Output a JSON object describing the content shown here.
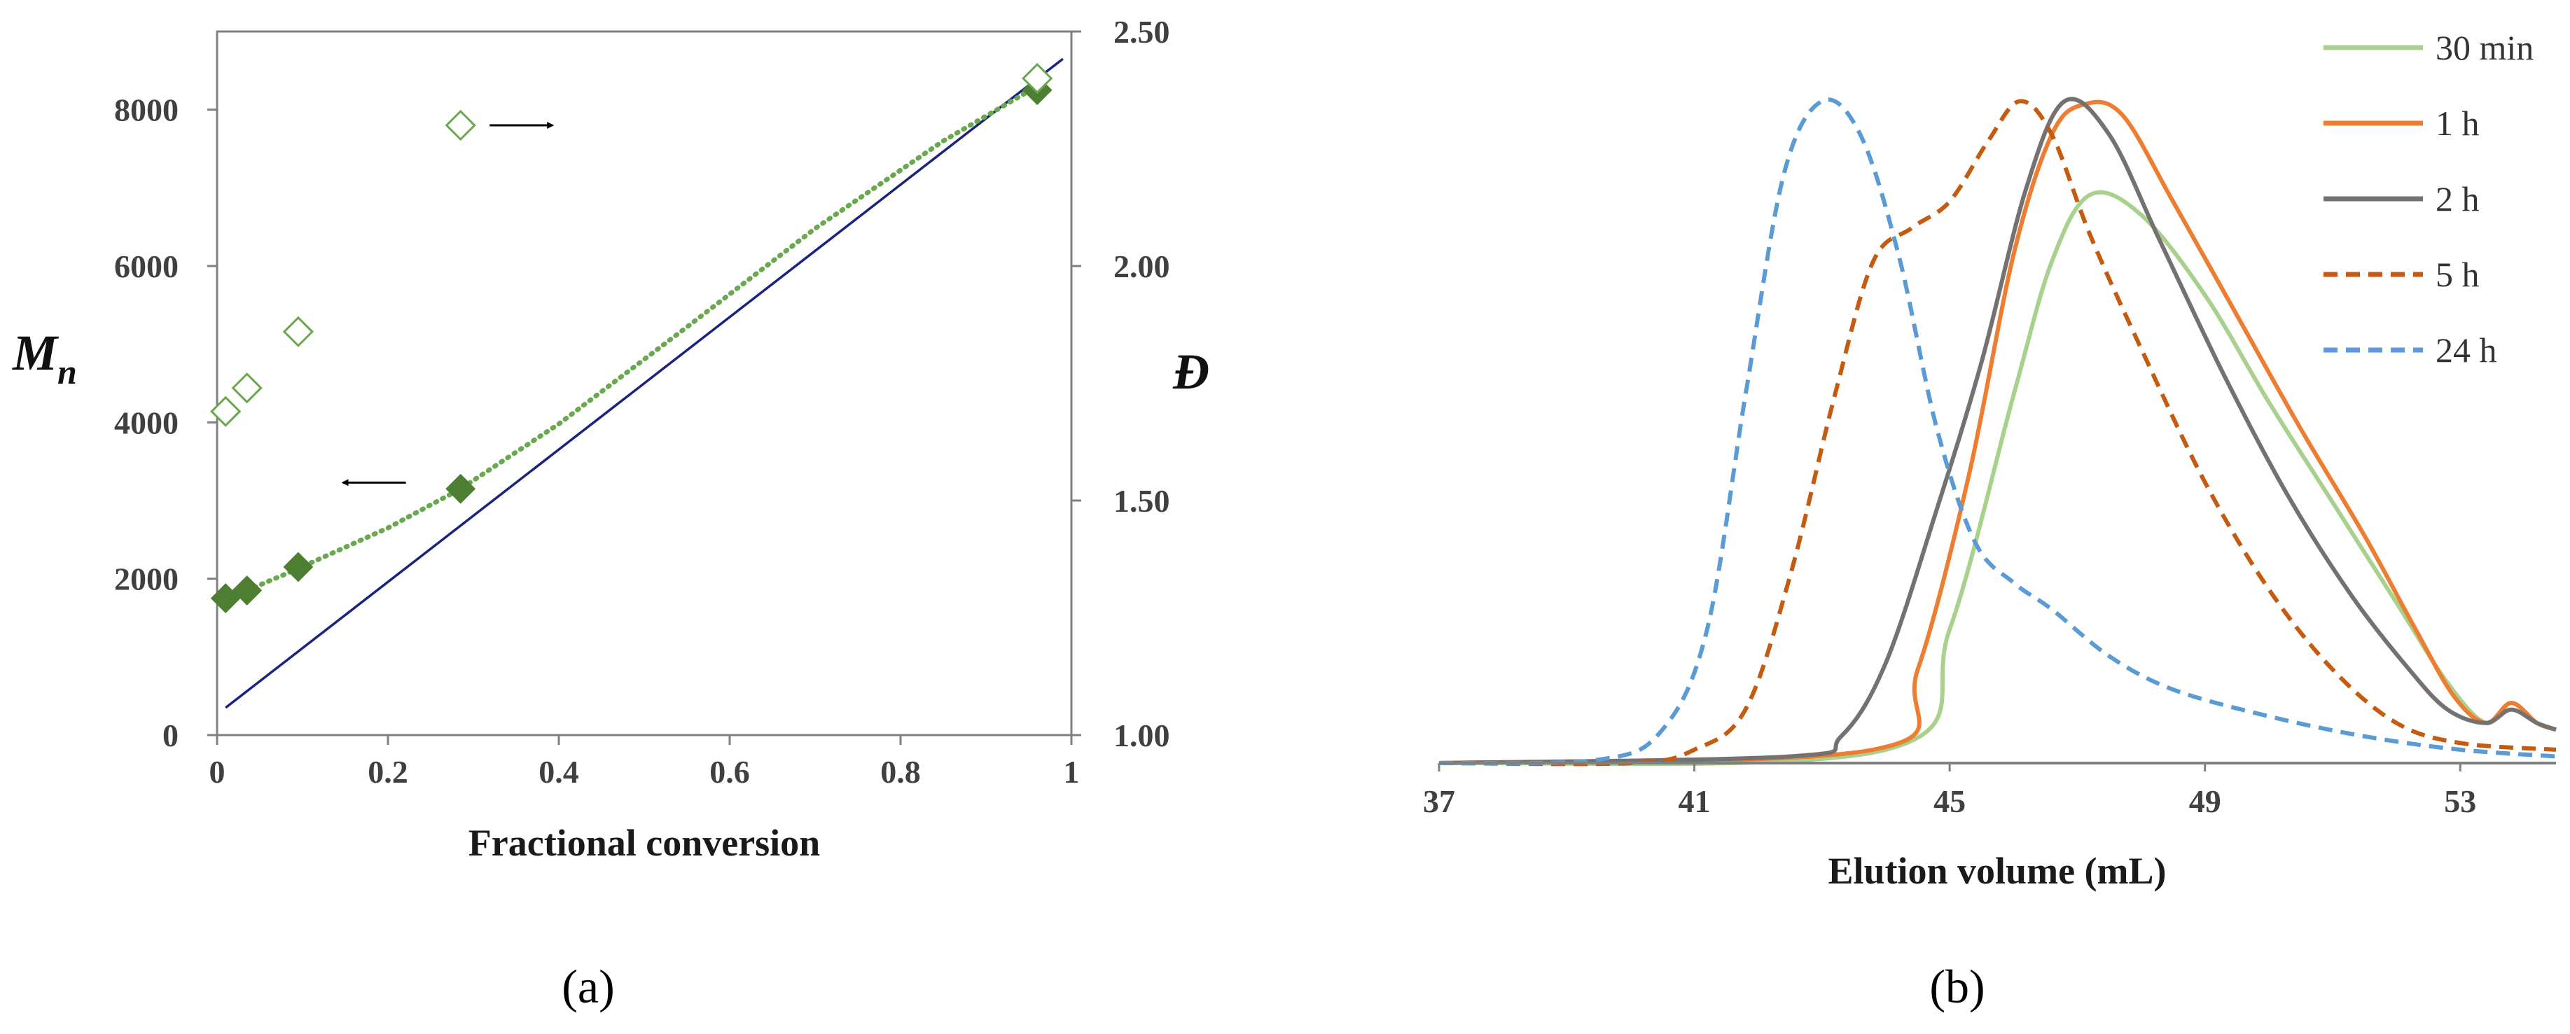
{
  "chart_data": [
    {
      "panel_label": "(a)",
      "type": "scatter",
      "xlabel": "Fractional conversion",
      "ylabel_left": "M",
      "ylabel_left_subscript": "n",
      "ylabel_right": "Đ",
      "xlim": [
        0,
        1
      ],
      "ylim_left": [
        0,
        9000
      ],
      "ylim_right": [
        1.0,
        2.5
      ],
      "x_ticks": [
        "0",
        "0.2",
        "0.4",
        "0.6",
        "0.8",
        "1"
      ],
      "y_left_ticks": [
        "0",
        "2000",
        "4000",
        "6000",
        "8000"
      ],
      "y_right_ticks": [
        "1.00",
        "1.50",
        "2.00",
        "2.50"
      ],
      "grid": false,
      "colors": {
        "filled": "#4e7e32",
        "hollow": "#6aa84f",
        "theory": "#1a237e",
        "trend": "#6aa84f",
        "arrow": "#000000"
      },
      "series": [
        {
          "axis": "left",
          "marker": "filled-diamond",
          "x": [
            0.01,
            0.035,
            0.095,
            0.285,
            0.96
          ],
          "y": [
            1750,
            1850,
            2150,
            3150,
            8250
          ]
        },
        {
          "axis": "right",
          "marker": "hollow-diamond",
          "x": [
            0.01,
            0.035,
            0.095,
            0.285,
            0.96
          ],
          "y": [
            1.69,
            1.74,
            1.86,
            2.3,
            2.4
          ]
        },
        {
          "axis": "left",
          "style": "solid-line",
          "x": [
            0.01,
            0.99
          ],
          "y": [
            350,
            8650
          ]
        },
        {
          "axis": "left",
          "style": "dotted-trendline",
          "x": [
            0.01,
            0.035,
            0.095,
            0.2,
            0.285,
            0.4,
            0.55,
            0.7,
            0.85,
            0.96
          ],
          "y": [
            1750,
            1850,
            2130,
            2650,
            3150,
            3980,
            5220,
            6480,
            7600,
            8300
          ]
        }
      ],
      "annotations": [
        {
          "type": "arrow-right",
          "x": 0.36,
          "y": 7800
        },
        {
          "type": "arrow-left",
          "x": 0.18,
          "y": 3230
        }
      ]
    },
    {
      "panel_label": "(b)",
      "type": "line",
      "xlabel": "Elution volume (mL)",
      "xlim": [
        37,
        54.5
      ],
      "x_ticks": [
        "37",
        "41",
        "45",
        "49",
        "53"
      ],
      "legend_position": "top-right",
      "series": [
        {
          "name": "30 min",
          "color": "#a9d18e",
          "dash": "solid",
          "x": [
            37,
            44,
            45,
            46,
            46.6,
            47.2,
            48,
            49,
            50,
            51,
            52,
            52.8,
            53.4,
            53.8,
            54.2,
            54.5
          ],
          "y": [
            0,
            0.02,
            0.2,
            0.55,
            0.75,
            0.85,
            0.82,
            0.7,
            0.54,
            0.39,
            0.24,
            0.12,
            0.06,
            0.09,
            0.06,
            0.05
          ]
        },
        {
          "name": "1 h",
          "color": "#ed7d31",
          "dash": "solid",
          "x": [
            37,
            43.8,
            44.5,
            45.3,
            46,
            46.6,
            47.1,
            47.7,
            48.5,
            49.5,
            50.5,
            51.5,
            52.3,
            52.9,
            53.4,
            53.8,
            54.2,
            54.5
          ],
          "y": [
            0,
            0.02,
            0.14,
            0.43,
            0.76,
            0.94,
            0.985,
            0.97,
            0.84,
            0.67,
            0.5,
            0.34,
            0.2,
            0.1,
            0.06,
            0.09,
            0.06,
            0.05
          ]
        },
        {
          "name": "2 h",
          "color": "#767171",
          "dash": "solid",
          "x": [
            37,
            42.5,
            43.3,
            44,
            44.8,
            45.5,
            46.2,
            46.8,
            47.5,
            48.3,
            49.3,
            50.3,
            51.3,
            52.2,
            52.8,
            53.4,
            53.8,
            54.2,
            54.5
          ],
          "y": [
            0,
            0.01,
            0.04,
            0.15,
            0.38,
            0.6,
            0.86,
            0.99,
            0.94,
            0.78,
            0.58,
            0.4,
            0.25,
            0.14,
            0.08,
            0.06,
            0.08,
            0.06,
            0.05
          ]
        },
        {
          "name": "5 h",
          "color": "#c55a11",
          "dash": "dashed",
          "x": [
            37,
            40,
            41,
            41.8,
            42.5,
            43.2,
            43.8,
            44.4,
            45,
            45.6,
            46.1,
            46.6,
            47.2,
            48,
            49,
            50,
            51,
            52,
            53,
            54.5
          ],
          "y": [
            0,
            0,
            0.02,
            0.08,
            0.28,
            0.55,
            0.75,
            0.8,
            0.84,
            0.93,
            0.99,
            0.94,
            0.79,
            0.62,
            0.42,
            0.26,
            0.14,
            0.06,
            0.03,
            0.02
          ]
        },
        {
          "name": "24 h",
          "color": "#5b9bd5",
          "dash": "dashed",
          "x": [
            37,
            39.5,
            40.5,
            41.2,
            41.8,
            42.4,
            43,
            43.6,
            44.2,
            44.8,
            45.4,
            46,
            46.6,
            47.5,
            48.5,
            50,
            51.5,
            53,
            54.5
          ],
          "y": [
            0,
            0.005,
            0.05,
            0.2,
            0.55,
            0.88,
            0.99,
            0.94,
            0.76,
            0.5,
            0.33,
            0.27,
            0.23,
            0.16,
            0.11,
            0.07,
            0.04,
            0.02,
            0.01
          ]
        }
      ]
    }
  ]
}
